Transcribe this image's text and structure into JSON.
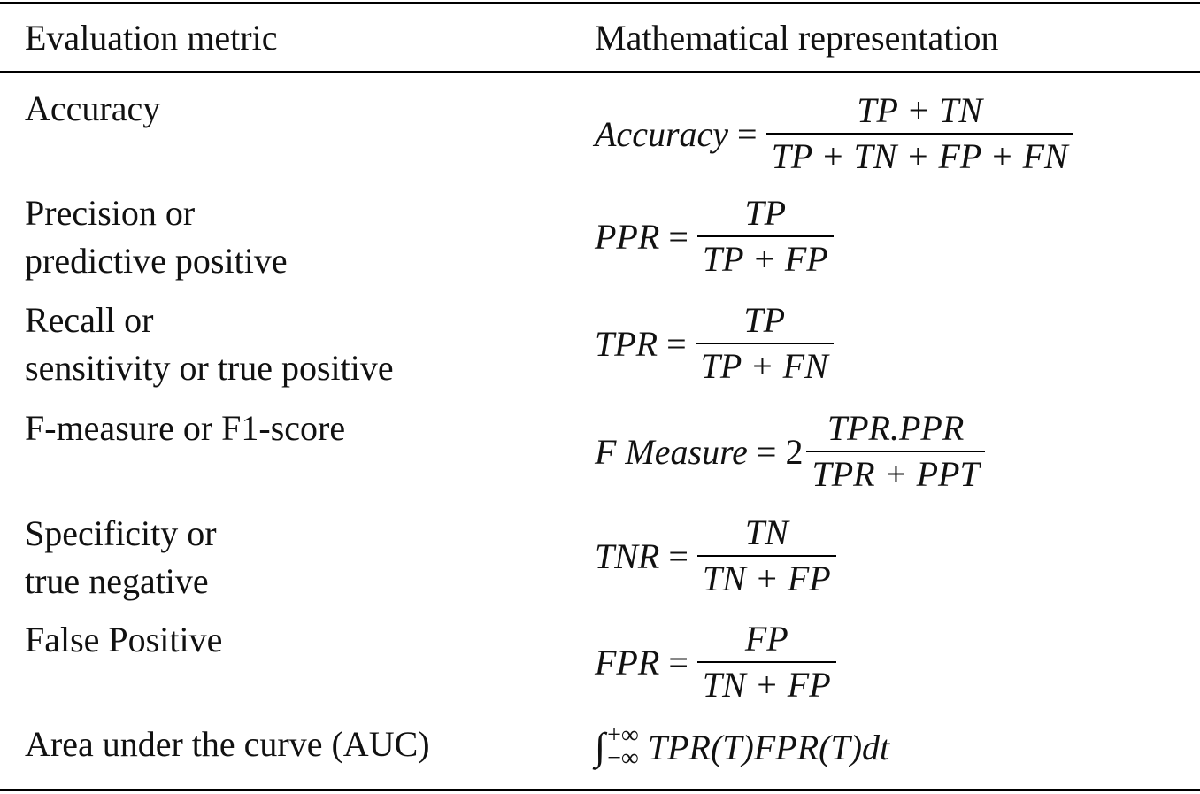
{
  "header": {
    "metric": "Evaluation metric",
    "math": "Mathematical representation"
  },
  "rows": [
    {
      "metric_lines": [
        "Accuracy"
      ],
      "lhs": "Accuracy",
      "op": "=",
      "coef": "",
      "numerator": "TP + TN",
      "denominator": "TP + TN + FP + FN"
    },
    {
      "metric_lines": [
        "Precision or",
        "predictive positive"
      ],
      "lhs": "PPR",
      "op": "=",
      "coef": "",
      "numerator": "TP",
      "denominator": "TP + FP"
    },
    {
      "metric_lines": [
        "Recall or",
        "sensitivity or true positive"
      ],
      "lhs": "TPR",
      "op": "=",
      "coef": "",
      "numerator": "TP",
      "denominator": "TP + FN"
    },
    {
      "metric_lines": [
        "F-measure or F1-score"
      ],
      "lhs": "F Measure",
      "op": "=",
      "coef": "2",
      "numerator": "TPR.PPR",
      "denominator": "TPR + PPT"
    },
    {
      "metric_lines": [
        "Specificity or",
        "true negative"
      ],
      "lhs": "TNR",
      "op": "=",
      "coef": "",
      "numerator": "TN",
      "denominator": "TN + FP"
    },
    {
      "metric_lines": [
        "False Positive"
      ],
      "lhs": "FPR",
      "op": "=",
      "coef": "",
      "numerator": "FP",
      "denominator": "TN + FP"
    },
    {
      "metric_lines": [
        "Area under the curve (AUC)"
      ],
      "integral_sign": "∫",
      "upper_limit": "+∞",
      "lower_limit": "−∞",
      "integrand": "TPR(T)FPR(T)dt"
    }
  ]
}
